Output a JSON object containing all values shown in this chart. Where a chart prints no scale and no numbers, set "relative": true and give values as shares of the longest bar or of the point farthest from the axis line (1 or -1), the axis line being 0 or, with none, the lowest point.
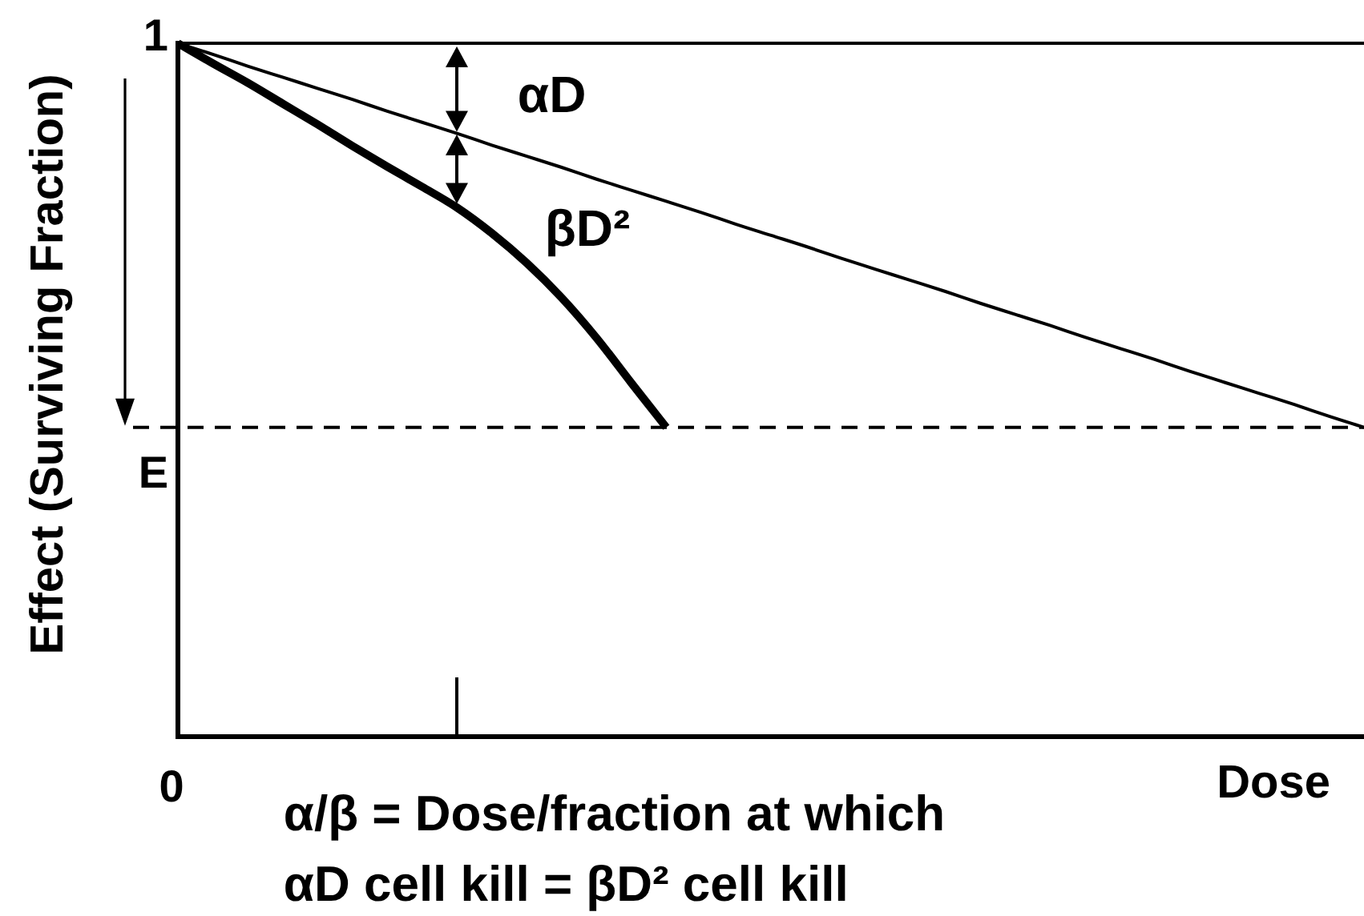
{
  "chart_data": {
    "type": "line",
    "relative": true,
    "ylabel": "Effect (Surviving Fraction)",
    "xlabel": "Dose",
    "categories": [
      null,
      null,
      null,
      null,
      null,
      null,
      null,
      null,
      null,
      null,
      null,
      null,
      null,
      null,
      null,
      null,
      null,
      null,
      null,
      null,
      null,
      null,
      null,
      null,
      null,
      null,
      null,
      null,
      null,
      null,
      null,
      null,
      null,
      null,
      null
    ],
    "series": [
      {
        "color": "#000000",
        "values": [
          1,
          0.984,
          0.967,
          0.951,
          0.935,
          0.919,
          0.902,
          0.886,
          0.87,
          0.853,
          0.837,
          0.821,
          0.804,
          0.788,
          0.772,
          0.756,
          0.739,
          0.723,
          0.707,
          0.69,
          0.674,
          0.658,
          0.642,
          0.625,
          0.609,
          0.593,
          0.576,
          0.56,
          0.544,
          0.527,
          0.511,
          0.495,
          0.479,
          0.462,
          0.446
        ]
      },
      {
        "color": "#000000",
        "values": [
          1,
          0.971,
          0.943,
          0.913,
          0.883,
          0.852,
          0.822,
          0.793,
          0.763,
          0.726,
          0.683,
          0.633,
          0.575,
          0.51,
          0.446,
          null,
          null,
          null,
          null,
          null,
          null,
          null,
          null,
          null,
          null,
          null,
          null,
          null,
          null,
          null,
          null,
          null,
          null,
          null,
          null
        ]
      }
    ],
    "ref_lines": [
      {
        "axis": "y",
        "value": 1,
        "label": "1",
        "line_style": "solid"
      },
      {
        "axis": "y",
        "value": 0.446,
        "label": "E",
        "line_style": "dashed"
      }
    ],
    "annotations": [
      "0",
      "αD",
      "βD²",
      "α/β = Dose/fraction at which αD cell kill = βD² cell kill"
    ],
    "grid": false,
    "legend": false,
    "marker": "none",
    "line_style": "solid"
  }
}
